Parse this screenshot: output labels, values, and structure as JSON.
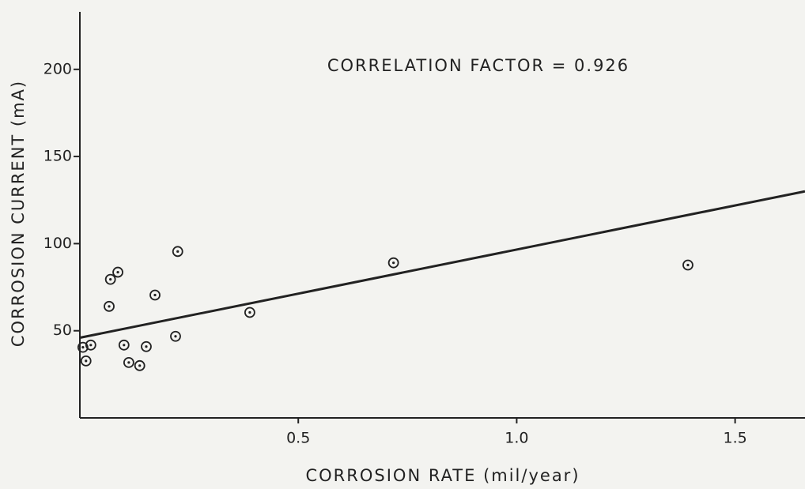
{
  "chart_data": {
    "type": "scatter",
    "annotation": "CORRELATION FACTOR = 0.926",
    "x_label": "CORROSION RATE (mil/year)",
    "y_label": "CORROSION CURRENT (mA)",
    "x": [
      0.007,
      0.014,
      0.025,
      0.067,
      0.07,
      0.087,
      0.101,
      0.112,
      0.137,
      0.152,
      0.172,
      0.219,
      0.224,
      0.389,
      0.718,
      1.392
    ],
    "values": [
      40.5,
      32.7,
      41.8,
      64,
      79.5,
      83.6,
      41.8,
      31.8,
      30,
      40.9,
      70.5,
      46.8,
      95.5,
      60.5,
      89,
      87.7
    ],
    "trend_line": {
      "x": [
        0,
        1.66
      ],
      "y": [
        46,
        130
      ]
    },
    "color": "#222222",
    "xlim": [
      0,
      1.66
    ],
    "ylim": [
      0,
      233
    ],
    "xticks": [
      0.5,
      {
        "value": 1,
        "label": "1.0"
      },
      1.5
    ],
    "yticks": [
      50,
      100,
      150,
      200
    ]
  }
}
